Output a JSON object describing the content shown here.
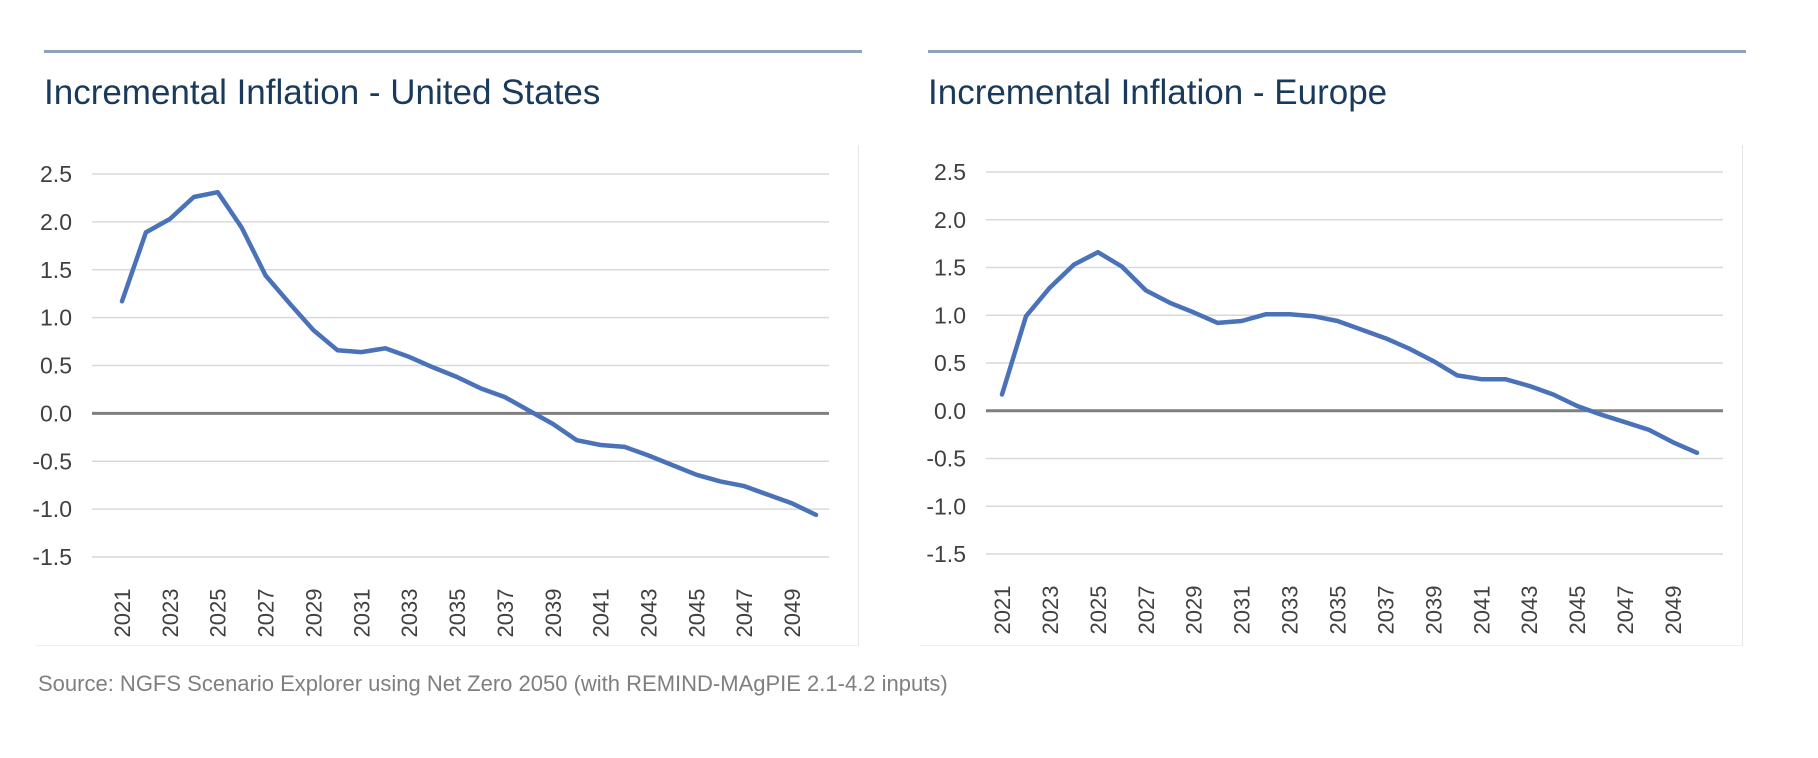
{
  "source_note": "Source: NGFS Scenario Explorer using Net Zero 2050 (with REMIND-MAgPIE 2.1-4.2 inputs)",
  "colors": {
    "series": "#4a72b8",
    "zero_line": "#808080",
    "grid": "#d9d9d9",
    "title": "#1a3a5c",
    "rule": "#8ea3b8"
  },
  "chart_data": [
    {
      "type": "line",
      "title": "Incremental Inflation - United States",
      "xlabel": "",
      "ylabel": "",
      "ylim": [
        -1.5,
        2.5
      ],
      "yticks": [
        "2.5",
        "2.0",
        "1.5",
        "1.0",
        "0.5",
        "0.0",
        "-0.5",
        "-1.0",
        "-1.5"
      ],
      "xtick_labels": [
        "2021",
        "2023",
        "2025",
        "2027",
        "2029",
        "2031",
        "2033",
        "2035",
        "2037",
        "2039",
        "2041",
        "2043",
        "2045",
        "2047",
        "2049"
      ],
      "grid": true,
      "legend": "none",
      "x": [
        2021,
        2022,
        2023,
        2024,
        2025,
        2026,
        2027,
        2028,
        2029,
        2030,
        2031,
        2032,
        2033,
        2034,
        2035,
        2036,
        2037,
        2038,
        2039,
        2040,
        2041,
        2042,
        2043,
        2044,
        2045,
        2046,
        2047,
        2048,
        2049,
        2050
      ],
      "series": [
        {
          "values": [
            1.17,
            1.89,
            2.03,
            2.26,
            2.31,
            1.94,
            1.44,
            1.15,
            0.87,
            0.66,
            0.64,
            0.68,
            0.59,
            0.48,
            0.38,
            0.26,
            0.17,
            0.03,
            -0.11,
            -0.28,
            -0.33,
            -0.35,
            -0.44,
            -0.54,
            -0.64,
            -0.71,
            -0.76,
            -0.85,
            -0.94,
            -1.06
          ]
        }
      ]
    },
    {
      "type": "line",
      "title": "Incremental Inflation - Europe",
      "xlabel": "",
      "ylabel": "",
      "ylim": [
        -1.5,
        2.5
      ],
      "yticks": [
        "2.5",
        "2.0",
        "1.5",
        "1.0",
        "0.5",
        "0.0",
        "-0.5",
        "-1.0",
        "-1.5"
      ],
      "xtick_labels": [
        "2021",
        "2023",
        "2025",
        "2027",
        "2029",
        "2031",
        "2033",
        "2035",
        "2037",
        "2039",
        "2041",
        "2043",
        "2045",
        "2047",
        "2049"
      ],
      "grid": true,
      "legend": "none",
      "x": [
        2021,
        2022,
        2023,
        2024,
        2025,
        2026,
        2027,
        2028,
        2029,
        2030,
        2031,
        2032,
        2033,
        2034,
        2035,
        2036,
        2037,
        2038,
        2039,
        2040,
        2041,
        2042,
        2043,
        2044,
        2045,
        2046,
        2047,
        2048,
        2049,
        2050
      ],
      "series": [
        {
          "values": [
            0.17,
            0.99,
            1.29,
            1.53,
            1.66,
            1.51,
            1.26,
            1.13,
            1.03,
            0.92,
            0.94,
            1.01,
            1.01,
            0.99,
            0.94,
            0.85,
            0.76,
            0.65,
            0.52,
            0.37,
            0.33,
            0.33,
            0.26,
            0.17,
            0.05,
            -0.04,
            -0.12,
            -0.2,
            -0.33,
            -0.44
          ]
        }
      ]
    }
  ]
}
